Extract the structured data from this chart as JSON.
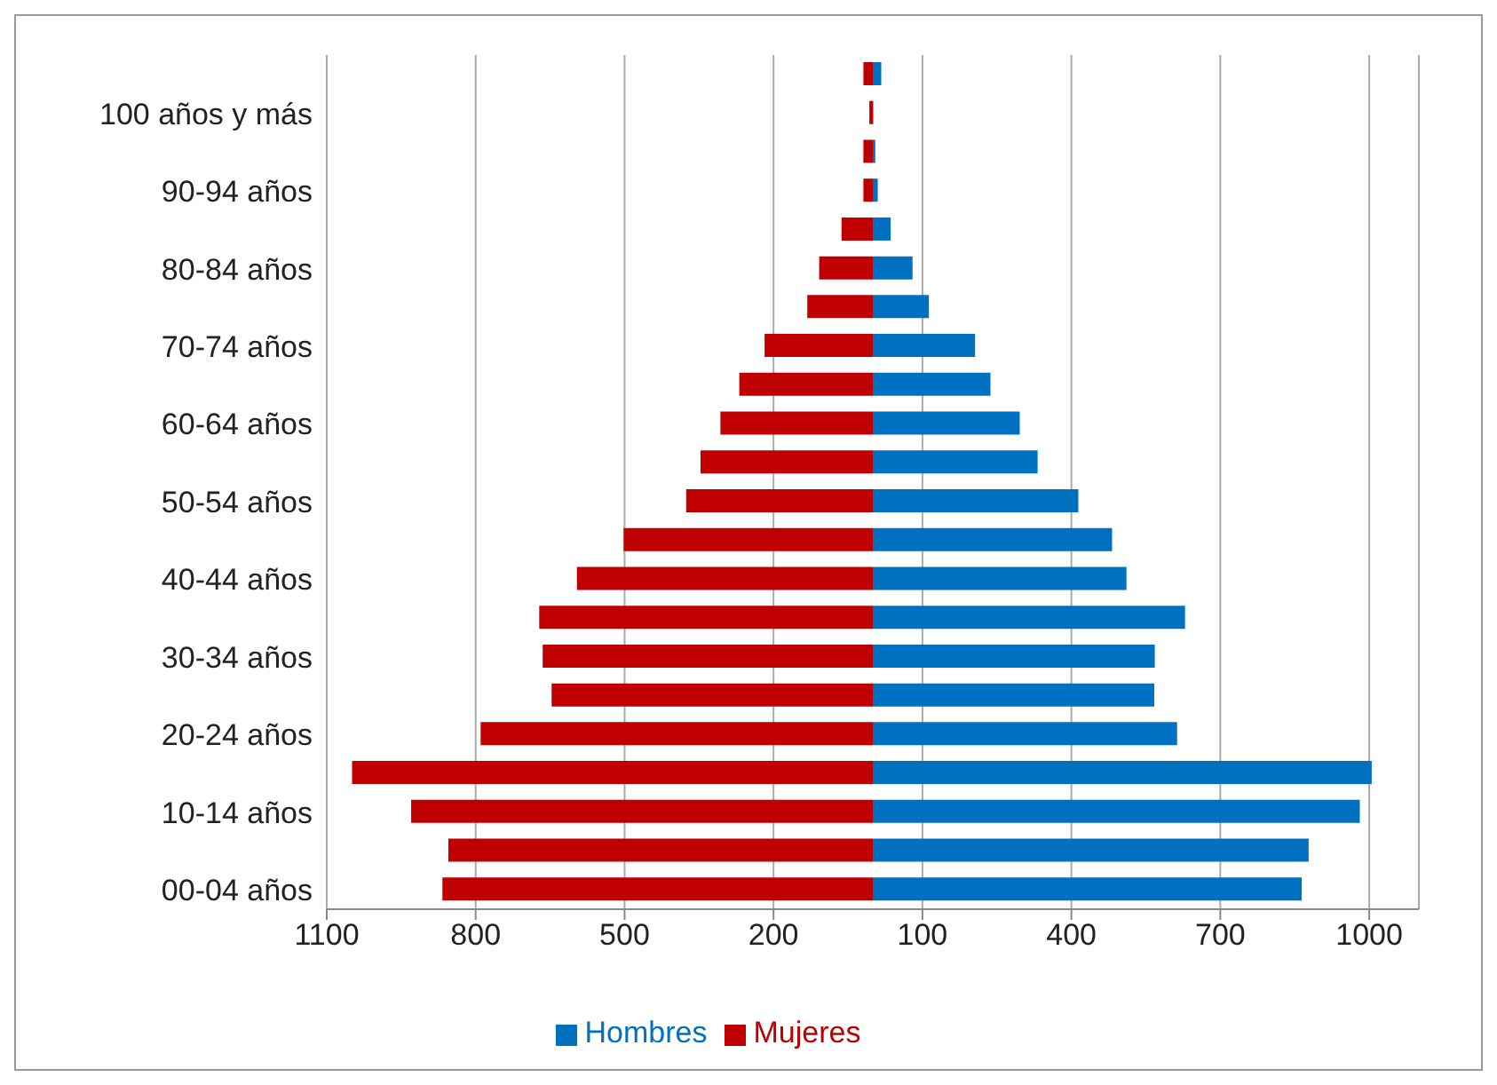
{
  "chart_data": {
    "type": "bar",
    "orientation": "horizontal",
    "stacked": true,
    "categories": [
      null,
      "100 años y más",
      null,
      "90-94 años",
      null,
      "80-84 años",
      null,
      "70-74 años",
      null,
      "60-64 años",
      null,
      "50-54 años",
      null,
      "40-44 años",
      null,
      "30-34 años",
      null,
      "20-24 años",
      null,
      "10-14 años",
      null,
      "00-04 años"
    ],
    "series": [
      {
        "name": "Hombres",
        "color": "#0070c0",
        "values": [
          17,
          1,
          5,
          10,
          36,
          80,
          113,
          206,
          237,
          296,
          332,
          414,
          482,
          511,
          629,
          568,
          567,
          613,
          1005,
          981,
          878,
          864
        ]
      },
      {
        "name": "Mujeres",
        "color": "#c00000",
        "values": [
          -19,
          -7,
          -19,
          -19,
          -63,
          -108,
          -132,
          -218,
          -269,
          -307,
          -347,
          -376,
          -502,
          -596,
          -672,
          -665,
          -647,
          -790,
          -1049,
          -930,
          -855,
          -867
        ]
      }
    ],
    "xlim": [
      -1100,
      1100
    ],
    "xticks": [
      {
        "value": -1100,
        "label": "1100"
      },
      {
        "value": -800,
        "label": "800"
      },
      {
        "value": -500,
        "label": "500"
      },
      {
        "value": -200,
        "label": "200"
      },
      100,
      400,
      700,
      1000
    ],
    "grid": "x",
    "legend": "bottom"
  }
}
